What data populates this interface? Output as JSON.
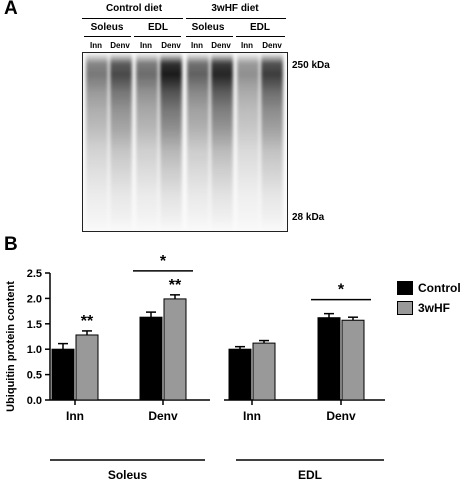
{
  "panel_a": {
    "label": "A",
    "diet_headers": [
      "Control diet",
      "3wHF diet"
    ],
    "muscle_headers": [
      "Soleus",
      "EDL",
      "Soleus",
      "EDL"
    ],
    "lane_labels": [
      "Inn",
      "Denv",
      "Inn",
      "Denv",
      "Inn",
      "Denv",
      "Inn",
      "Denv"
    ],
    "markers": [
      "250 kDa",
      "28 kDa"
    ],
    "lane_intensity": [
      0.55,
      0.75,
      0.6,
      0.95,
      0.65,
      0.9,
      0.45,
      0.8
    ]
  },
  "panel_b": {
    "label": "B",
    "legend": {
      "items": [
        {
          "name": "Control",
          "color": "#000000"
        },
        {
          "name": "3wHF",
          "color": "#999999"
        }
      ]
    }
  },
  "chart_data": {
    "type": "bar",
    "ylabel": "Ubiquitin protein content",
    "ylim": [
      0,
      2.5
    ],
    "yticks": [
      "0.0",
      "0.5",
      "1.0",
      "1.5",
      "2.0",
      "2.5"
    ],
    "muscles": [
      {
        "name": "Soleus",
        "categories": [
          "Inn",
          "Denv"
        ]
      },
      {
        "name": "EDL",
        "categories": [
          "Inn",
          "Denv"
        ]
      }
    ],
    "series": [
      {
        "name": "Control",
        "color": "#000000",
        "values": [
          1.0,
          1.63,
          1.0,
          1.62
        ],
        "errors": [
          0.11,
          0.1,
          0.05,
          0.08
        ]
      },
      {
        "name": "3wHF",
        "color": "#999999",
        "values": [
          1.28,
          1.99,
          1.12,
          1.57
        ],
        "errors": [
          0.08,
          0.08,
          0.05,
          0.06
        ]
      }
    ],
    "annotations": [
      {
        "text": "**",
        "group": 0,
        "series": 1
      },
      {
        "text": "**",
        "group": 1,
        "series": 1
      },
      {
        "text": "*",
        "bracket_groups": [
          1
        ]
      },
      {
        "text": "*",
        "bracket_groups": [
          3
        ]
      }
    ]
  }
}
